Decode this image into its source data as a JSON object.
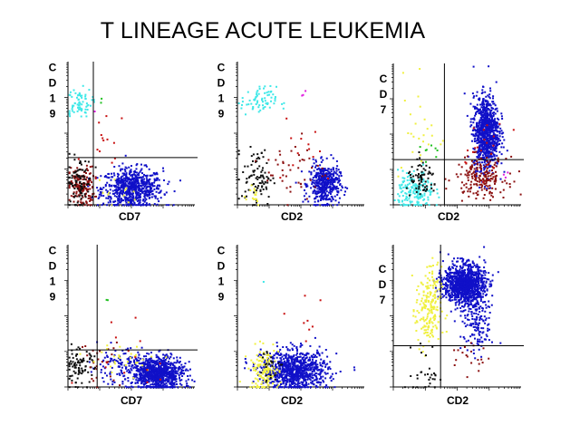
{
  "title": "T LINEAGE ACUTE LEUKEMIA",
  "colors": {
    "blue": "#1010c8",
    "cyan": "#40e8e8",
    "black": "#101010",
    "darkred": "#8b1010",
    "red": "#c81010",
    "yellow": "#f0f040",
    "green": "#20c020",
    "magenta": "#e020e0"
  },
  "chart_data": [
    {
      "type": "scatter",
      "panel": "top-left",
      "xlabel": "CD7",
      "ylabel": "CD19",
      "xlim": [
        0,
        1
      ],
      "ylim": [
        0,
        1
      ],
      "gate": [
        0.2,
        0.33
      ],
      "clusters": [
        {
          "name": "blue",
          "x": 0.5,
          "y": 0.12,
          "sx": 0.12,
          "sy": 0.07,
          "n": 700
        },
        {
          "name": "cyan",
          "x": 0.08,
          "y": 0.72,
          "sx": 0.05,
          "sy": 0.05,
          "n": 70
        },
        {
          "name": "darkred",
          "x": 0.1,
          "y": 0.13,
          "sx": 0.05,
          "sy": 0.07,
          "n": 160
        },
        {
          "name": "black",
          "x": 0.08,
          "y": 0.16,
          "sx": 0.05,
          "sy": 0.09,
          "n": 90
        },
        {
          "name": "yellow",
          "x": 0.38,
          "y": 0.1,
          "sx": 0.08,
          "sy": 0.05,
          "n": 12
        },
        {
          "name": "red",
          "x": 0.3,
          "y": 0.4,
          "sx": 0.1,
          "sy": 0.15,
          "n": 14
        },
        {
          "name": "green",
          "x": 0.27,
          "y": 0.72,
          "sx": 0.01,
          "sy": 0.02,
          "n": 2
        },
        {
          "name": "magenta",
          "x": 0.2,
          "y": 0.66,
          "sx": 0.02,
          "sy": 0.02,
          "n": 1
        }
      ]
    },
    {
      "type": "scatter",
      "panel": "top-middle",
      "xlabel": "CD2",
      "ylabel": "CD19",
      "xlim": [
        0,
        1
      ],
      "ylim": [
        0,
        1
      ],
      "gate": [
        0,
        0
      ],
      "clusters": [
        {
          "name": "blue",
          "x": 0.68,
          "y": 0.15,
          "sx": 0.06,
          "sy": 0.07,
          "n": 450
        },
        {
          "name": "cyan",
          "x": 0.16,
          "y": 0.73,
          "sx": 0.07,
          "sy": 0.05,
          "n": 70
        },
        {
          "name": "black",
          "x": 0.15,
          "y": 0.2,
          "sx": 0.06,
          "sy": 0.1,
          "n": 90
        },
        {
          "name": "darkred",
          "x": 0.45,
          "y": 0.25,
          "sx": 0.12,
          "sy": 0.12,
          "n": 45
        },
        {
          "name": "yellow",
          "x": 0.1,
          "y": 0.08,
          "sx": 0.05,
          "sy": 0.05,
          "n": 15
        },
        {
          "name": "red",
          "x": 0.5,
          "y": 0.45,
          "sx": 0.15,
          "sy": 0.15,
          "n": 12
        },
        {
          "name": "magenta",
          "x": 0.53,
          "y": 0.78,
          "sx": 0.05,
          "sy": 0.02,
          "n": 3
        }
      ]
    },
    {
      "type": "scatter",
      "panel": "top-right",
      "xlabel": "CD2",
      "ylabel": "CD7",
      "xlim": [
        0,
        1
      ],
      "ylim": [
        0,
        1
      ],
      "gate": [
        0.4,
        0.32
      ],
      "clusters": [
        {
          "name": "blue",
          "x": 0.72,
          "y": 0.52,
          "sx": 0.05,
          "sy": 0.13,
          "n": 900
        },
        {
          "name": "cyan",
          "x": 0.17,
          "y": 0.1,
          "sx": 0.07,
          "sy": 0.07,
          "n": 180
        },
        {
          "name": "black",
          "x": 0.22,
          "y": 0.18,
          "sx": 0.06,
          "sy": 0.06,
          "n": 70
        },
        {
          "name": "darkred",
          "x": 0.68,
          "y": 0.2,
          "sx": 0.1,
          "sy": 0.07,
          "n": 200
        },
        {
          "name": "yellow",
          "x": 0.2,
          "y": 0.55,
          "sx": 0.08,
          "sy": 0.2,
          "n": 25
        },
        {
          "name": "red",
          "x": 0.7,
          "y": 0.4,
          "sx": 0.1,
          "sy": 0.1,
          "n": 20
        },
        {
          "name": "green",
          "x": 0.3,
          "y": 0.38,
          "sx": 0.04,
          "sy": 0.05,
          "n": 8
        },
        {
          "name": "magenta",
          "x": 0.87,
          "y": 0.2,
          "sx": 0.02,
          "sy": 0.02,
          "n": 3
        }
      ]
    },
    {
      "type": "scatter",
      "panel": "bottom-left",
      "xlabel": "CD7",
      "ylabel": "CD19",
      "xlim": [
        0,
        1
      ],
      "ylim": [
        0,
        1
      ],
      "gate": [
        0.23,
        0.26
      ],
      "clusters": [
        {
          "name": "blue",
          "x": 0.7,
          "y": 0.1,
          "sx": 0.1,
          "sy": 0.06,
          "n": 900
        },
        {
          "name": "blue",
          "x": 0.4,
          "y": 0.15,
          "sx": 0.12,
          "sy": 0.06,
          "n": 120
        },
        {
          "name": "black",
          "x": 0.08,
          "y": 0.15,
          "sx": 0.06,
          "sy": 0.06,
          "n": 90
        },
        {
          "name": "darkred",
          "x": 0.25,
          "y": 0.18,
          "sx": 0.08,
          "sy": 0.08,
          "n": 25
        },
        {
          "name": "yellow",
          "x": 0.45,
          "y": 0.2,
          "sx": 0.15,
          "sy": 0.05,
          "n": 30
        },
        {
          "name": "red",
          "x": 0.5,
          "y": 0.3,
          "sx": 0.2,
          "sy": 0.15,
          "n": 14
        },
        {
          "name": "green",
          "x": 0.3,
          "y": 0.6,
          "sx": 0.01,
          "sy": 0.02,
          "n": 2
        }
      ]
    },
    {
      "type": "scatter",
      "panel": "bottom-middle",
      "xlabel": "CD2",
      "ylabel": "CD19",
      "xlim": [
        0,
        1
      ],
      "ylim": [
        0,
        1
      ],
      "gate": [
        0,
        0
      ],
      "clusters": [
        {
          "name": "blue",
          "x": 0.45,
          "y": 0.12,
          "sx": 0.13,
          "sy": 0.07,
          "n": 900
        },
        {
          "name": "yellow",
          "x": 0.2,
          "y": 0.12,
          "sx": 0.06,
          "sy": 0.08,
          "n": 140
        },
        {
          "name": "black",
          "x": 0.25,
          "y": 0.15,
          "sx": 0.05,
          "sy": 0.06,
          "n": 25
        },
        {
          "name": "red",
          "x": 0.55,
          "y": 0.5,
          "sx": 0.08,
          "sy": 0.12,
          "n": 8
        },
        {
          "name": "cyan",
          "x": 0.2,
          "y": 0.74,
          "sx": 0.01,
          "sy": 0.01,
          "n": 1
        }
      ]
    },
    {
      "type": "scatter",
      "panel": "bottom-right",
      "xlabel": "CD2",
      "ylabel": "CD7",
      "xlim": [
        0,
        1
      ],
      "ylim": [
        0,
        1
      ],
      "gate": [
        0.37,
        0.29
      ],
      "clusters": [
        {
          "name": "blue",
          "x": 0.55,
          "y": 0.73,
          "sx": 0.08,
          "sy": 0.07,
          "n": 1100
        },
        {
          "name": "blue",
          "x": 0.65,
          "y": 0.45,
          "sx": 0.06,
          "sy": 0.1,
          "n": 150
        },
        {
          "name": "yellow",
          "x": 0.27,
          "y": 0.55,
          "sx": 0.05,
          "sy": 0.15,
          "n": 200
        },
        {
          "name": "black",
          "x": 0.25,
          "y": 0.1,
          "sx": 0.05,
          "sy": 0.1,
          "n": 30
        },
        {
          "name": "darkred",
          "x": 0.6,
          "y": 0.22,
          "sx": 0.08,
          "sy": 0.06,
          "n": 20
        }
      ]
    }
  ]
}
